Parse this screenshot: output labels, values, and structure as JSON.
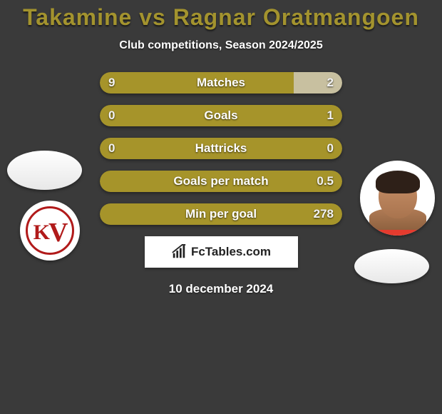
{
  "title": {
    "p1": "Takamine",
    "vs": "vs",
    "p2": "Ragnar Oratmangoen"
  },
  "title_color": "#a3932e",
  "subtitle": "Club competitions, Season 2024/2025",
  "stats": [
    {
      "label": "Matches",
      "left_text": "9",
      "right_text": "2",
      "left_pct": 80,
      "left_color": "#a6942a",
      "right_color": "#c8c0a0"
    },
    {
      "label": "Goals",
      "left_text": "0",
      "right_text": "1",
      "left_pct": 50,
      "left_color": "#a6942a",
      "right_color": "#a6942a"
    },
    {
      "label": "Hattricks",
      "left_text": "0",
      "right_text": "0",
      "left_pct": 50,
      "left_color": "#a6942a",
      "right_color": "#a6942a"
    },
    {
      "label": "Goals per match",
      "left_text": "",
      "right_text": "0.5",
      "left_pct": 50,
      "left_color": "#a6942a",
      "right_color": "#a6942a"
    },
    {
      "label": "Min per goal",
      "left_text": "",
      "right_text": "278",
      "left_pct": 50,
      "left_color": "#a6942a",
      "right_color": "#a6942a"
    }
  ],
  "brand": "FcTables.com",
  "date": "10 december 2024",
  "background_color": "#3a3a3a"
}
